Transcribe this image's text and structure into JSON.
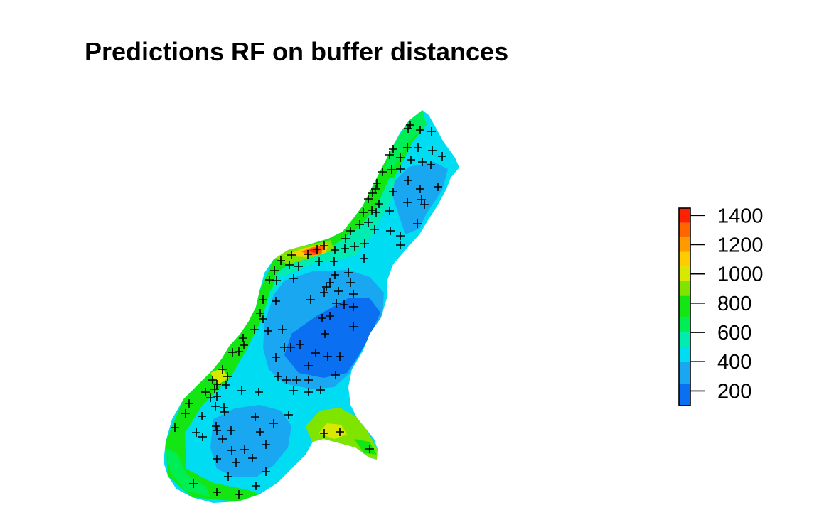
{
  "title": "Predictions RF on buffer distances",
  "legend": {
    "ticks": [
      "200",
      "400",
      "600",
      "800",
      "1000",
      "1200",
      "1400"
    ],
    "tick_values": [
      200,
      400,
      600,
      800,
      1000,
      1200,
      1400
    ],
    "range": [
      100,
      1450
    ],
    "bands": [
      {
        "from": 100,
        "to": 250,
        "color": "#0a6ff0"
      },
      {
        "from": 250,
        "to": 400,
        "color": "#1aa7f2"
      },
      {
        "from": 400,
        "to": 500,
        "color": "#00dcf2"
      },
      {
        "from": 500,
        "to": 600,
        "color": "#00ecb0"
      },
      {
        "from": 600,
        "to": 700,
        "color": "#00ee55"
      },
      {
        "from": 700,
        "to": 850,
        "color": "#14e614"
      },
      {
        "from": 850,
        "to": 950,
        "color": "#7ee400"
      },
      {
        "from": 950,
        "to": 1050,
        "color": "#d8e800"
      },
      {
        "from": 1050,
        "to": 1150,
        "color": "#ffcc00"
      },
      {
        "from": 1150,
        "to": 1250,
        "color": "#ff9a00"
      },
      {
        "from": 1250,
        "to": 1350,
        "color": "#ff6600"
      },
      {
        "from": 1350,
        "to": 1450,
        "color": "#ff2200"
      }
    ]
  },
  "layers": {
    "raster": "predicted values (colour-coded)",
    "points": "sample locations (+)"
  }
}
